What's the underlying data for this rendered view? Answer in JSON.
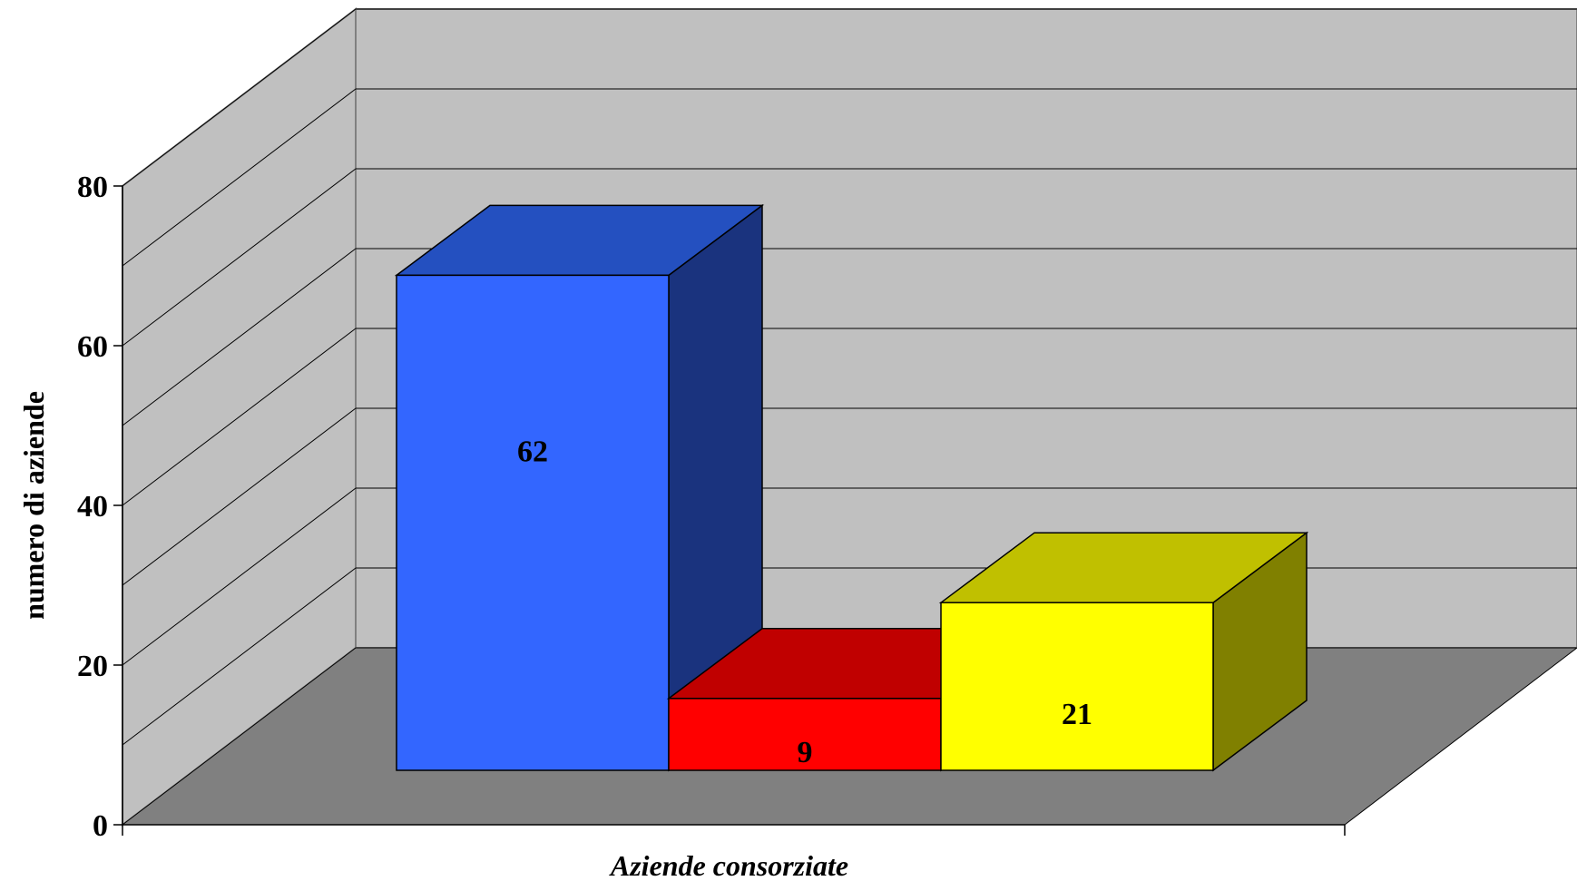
{
  "chart_data": {
    "type": "bar",
    "style": "3d-column",
    "categories": [
      "",
      "",
      ""
    ],
    "values": [
      62,
      9,
      21
    ],
    "data_labels": [
      "62",
      "9",
      "21"
    ],
    "colors": {
      "bars_front": [
        "#3366FF",
        "#FF0000",
        "#FFFF00"
      ],
      "bars_top": [
        "#2450C0",
        "#C00000",
        "#C0C000"
      ],
      "bars_side": [
        "#1A337E",
        "#800000",
        "#808000"
      ],
      "back_wall": "#C0C0C0",
      "side_wall": "#C0C0C0",
      "floor": "#808080"
    },
    "title": "",
    "xlabel": "Aziende consorziate",
    "ylabel": "numero di aziende",
    "ylim": [
      0,
      80
    ],
    "yticks": [
      0,
      20,
      40,
      60,
      80
    ],
    "y_tick_labels": [
      "0",
      "20",
      "40",
      "60",
      "80"
    ],
    "grid": true,
    "legend": "none"
  }
}
